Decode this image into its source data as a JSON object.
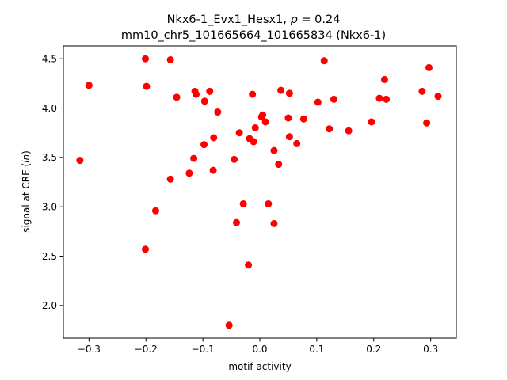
{
  "chart_data": {
    "type": "scatter",
    "title_line1_prefix": "Nkx6-1_Evx1_Hesx1, ",
    "title_rho_symbol": "ρ",
    "title_line1_suffix": " = 0.24",
    "title_line2": "mm10_chr5_101665664_101665834 (Nkx6-1)",
    "xlabel": "motif activity",
    "ylabel_prefix": "signal at CRE (",
    "ylabel_italic": "ln",
    "ylabel_suffix": ")",
    "xlim": [
      -0.345,
      0.345
    ],
    "ylim": [
      1.67,
      4.63
    ],
    "xticks": [
      -0.3,
      -0.2,
      -0.1,
      0.0,
      0.1,
      0.2,
      0.3
    ],
    "xtick_labels": [
      "−0.3",
      "−0.2",
      "−0.1",
      "0.0",
      "0.1",
      "0.2",
      "0.3"
    ],
    "yticks": [
      2.0,
      2.5,
      3.0,
      3.5,
      4.0,
      4.5
    ],
    "ytick_labels": [
      "2.0",
      "2.5",
      "3.0",
      "3.5",
      "4.0",
      "4.5"
    ],
    "marker_color": "#ff0000",
    "grid": false,
    "points": [
      {
        "x": -0.316,
        "y": 3.47
      },
      {
        "x": -0.3,
        "y": 4.23
      },
      {
        "x": -0.201,
        "y": 4.5
      },
      {
        "x": -0.199,
        "y": 4.22
      },
      {
        "x": -0.201,
        "y": 2.57
      },
      {
        "x": -0.183,
        "y": 2.96
      },
      {
        "x": -0.157,
        "y": 4.49
      },
      {
        "x": -0.157,
        "y": 3.28
      },
      {
        "x": -0.146,
        "y": 4.11
      },
      {
        "x": -0.124,
        "y": 3.34
      },
      {
        "x": -0.116,
        "y": 3.49
      },
      {
        "x": -0.114,
        "y": 4.17
      },
      {
        "x": -0.112,
        "y": 4.14
      },
      {
        "x": -0.098,
        "y": 3.63
      },
      {
        "x": -0.097,
        "y": 4.07
      },
      {
        "x": -0.088,
        "y": 4.17
      },
      {
        "x": -0.082,
        "y": 3.37
      },
      {
        "x": -0.081,
        "y": 3.7
      },
      {
        "x": -0.074,
        "y": 3.96
      },
      {
        "x": -0.054,
        "y": 1.8
      },
      {
        "x": -0.045,
        "y": 3.48
      },
      {
        "x": -0.041,
        "y": 2.84
      },
      {
        "x": -0.036,
        "y": 3.75
      },
      {
        "x": -0.029,
        "y": 3.03
      },
      {
        "x": -0.02,
        "y": 2.41
      },
      {
        "x": -0.018,
        "y": 3.69
      },
      {
        "x": -0.013,
        "y": 4.14
      },
      {
        "x": -0.011,
        "y": 3.66
      },
      {
        "x": -0.008,
        "y": 3.8
      },
      {
        "x": 0.003,
        "y": 3.91
      },
      {
        "x": 0.005,
        "y": 3.93
      },
      {
        "x": 0.01,
        "y": 3.86
      },
      {
        "x": 0.015,
        "y": 3.03
      },
      {
        "x": 0.025,
        "y": 2.83
      },
      {
        "x": 0.025,
        "y": 3.57
      },
      {
        "x": 0.033,
        "y": 3.43
      },
      {
        "x": 0.037,
        "y": 4.18
      },
      {
        "x": 0.05,
        "y": 3.9
      },
      {
        "x": 0.052,
        "y": 4.15
      },
      {
        "x": 0.052,
        "y": 3.71
      },
      {
        "x": 0.065,
        "y": 3.64
      },
      {
        "x": 0.077,
        "y": 3.89
      },
      {
        "x": 0.102,
        "y": 4.06
      },
      {
        "x": 0.113,
        "y": 4.48
      },
      {
        "x": 0.122,
        "y": 3.79
      },
      {
        "x": 0.13,
        "y": 4.09
      },
      {
        "x": 0.156,
        "y": 3.77
      },
      {
        "x": 0.196,
        "y": 3.86
      },
      {
        "x": 0.21,
        "y": 4.1
      },
      {
        "x": 0.219,
        "y": 4.29
      },
      {
        "x": 0.222,
        "y": 4.09
      },
      {
        "x": 0.285,
        "y": 4.17
      },
      {
        "x": 0.293,
        "y": 3.85
      },
      {
        "x": 0.297,
        "y": 4.41
      },
      {
        "x": 0.313,
        "y": 4.12
      }
    ]
  }
}
